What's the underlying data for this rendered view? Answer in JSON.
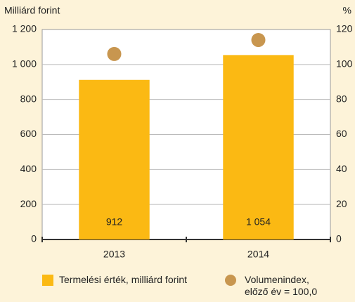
{
  "chart_data": {
    "type": "bar",
    "y_label": "Milliárd forint",
    "y2_label": "%",
    "categories": [
      "2013",
      "2014"
    ],
    "series": [
      {
        "name": "Termelési érték, milliárd forint",
        "color": "#fbb913",
        "values": [
          912,
          1054
        ],
        "value_labels": [
          "912",
          "1 054"
        ]
      },
      {
        "name": "Volumenindex, előző év = 100,0",
        "type": "scatter",
        "axis": "y2",
        "color": "#c8964f",
        "values": [
          106,
          114
        ]
      }
    ],
    "ylim": [
      0,
      1200
    ],
    "yticks": [
      0,
      200,
      400,
      600,
      800,
      {
        "value": 1000,
        "label": "1 000"
      },
      {
        "value": 1200,
        "label": "1 200"
      }
    ],
    "y2lim": [
      0,
      120
    ],
    "y2ticks": [
      0,
      20,
      40,
      60,
      80,
      100,
      120
    ],
    "grid": true
  }
}
